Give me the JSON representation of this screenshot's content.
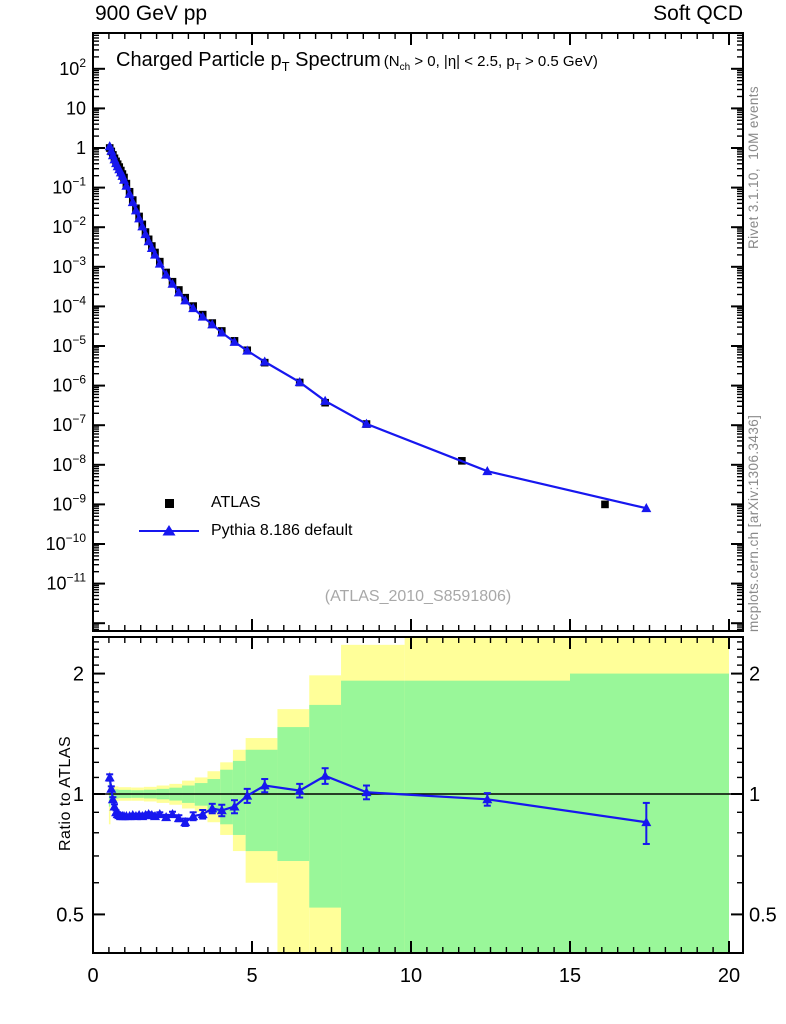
{
  "header": {
    "left": "900 GeV pp",
    "right": "Soft QCD"
  },
  "title": {
    "pre": "Charged Particle p",
    "sub": "T",
    "post": " Spectrum"
  },
  "cuts": {
    "p1": "(N",
    "s1": "ch",
    "p2": " > 0, |η| < 2.5, p",
    "s2": "T",
    "p3": " > 0.5 GeV)"
  },
  "legend": {
    "items": [
      {
        "label": "ATLAS",
        "marker": "black-square"
      },
      {
        "label": "Pythia 8.186 default",
        "marker": "blue-line-triangle"
      }
    ]
  },
  "watermark": {
    "text": "(ATLAS_2010_S8591806)"
  },
  "side_notes": {
    "top": "Rivet 3.1.10,  10M events",
    "bottom": "mcplots.cern.ch [arXiv:1306.3436]"
  },
  "colors": {
    "frame": "#000000",
    "mc_blue": "#1717ef",
    "band_outer_yellow": "#ffff99",
    "band_inner_green": "#99f799",
    "note_gray": "#8a8a8a",
    "watermark_gray": "#a8a8a8"
  },
  "chart_data": [
    {
      "type": "scatter",
      "title": "Charged Particle pT Spectrum",
      "subtitle": "(Nch > 0, |η| < 2.5, pT > 0.5 GeV)",
      "xlabel": "",
      "ylabel": "",
      "xlim": [
        0,
        20.45
      ],
      "ylim": [
        6e-13,
        800.0
      ],
      "yscale": "log",
      "grid": false,
      "xticks_major": [
        0,
        5,
        10,
        15,
        20
      ],
      "xtick_minor_step": 0.5,
      "ytick_label_exponents": [
        2,
        1,
        0,
        -1,
        -2,
        -3,
        -4,
        -5,
        -6,
        -7,
        -8,
        -9,
        -10,
        -11
      ],
      "legend_position": "left-middle",
      "watermark": "(ATLAS_2010_S8591806)",
      "series": [
        {
          "name": "ATLAS",
          "marker": "square",
          "color": "#000000",
          "line": false,
          "x": [
            0.525,
            0.575,
            0.625,
            0.675,
            0.725,
            0.775,
            0.825,
            0.875,
            0.925,
            0.975,
            1.05,
            1.15,
            1.25,
            1.35,
            1.45,
            1.55,
            1.65,
            1.75,
            1.85,
            1.95,
            2.1,
            2.3,
            2.5,
            2.7,
            2.9,
            3.15,
            3.45,
            3.75,
            4.05,
            4.45,
            4.85,
            5.4,
            6.5,
            7.3,
            8.6,
            11.6,
            16.1
          ],
          "y": [
            1.0,
            0.82,
            0.67,
            0.55,
            0.46,
            0.39,
            0.33,
            0.27,
            0.22,
            0.18,
            0.126,
            0.0785,
            0.0484,
            0.03,
            0.0187,
            0.0118,
            0.00754,
            0.00495,
            0.00335,
            0.0023,
            0.00135,
            0.00072,
            0.00042,
            0.00026,
            0.000166,
            0.000102,
            6.2e-05,
            3.8e-05,
            2.4e-05,
            1.35e-05,
            7.8e-06,
            3.8e-06,
            1.2e-06,
            3.7e-07,
            1.07e-07,
            1.26e-08,
            1e-09
          ]
        },
        {
          "name": "Pythia 8.186 default",
          "marker": "triangle-up",
          "color": "#1717ef",
          "line": true,
          "x": [
            0.525,
            0.575,
            0.625,
            0.675,
            0.725,
            0.775,
            0.825,
            0.875,
            0.925,
            0.975,
            1.05,
            1.15,
            1.25,
            1.35,
            1.45,
            1.55,
            1.65,
            1.75,
            1.85,
            1.95,
            2.1,
            2.3,
            2.5,
            2.7,
            2.9,
            3.15,
            3.45,
            3.75,
            4.05,
            4.45,
            4.85,
            5.4,
            6.5,
            7.3,
            8.6,
            12.4,
            17.4
          ],
          "y": [
            1.1,
            0.845,
            0.654,
            0.514,
            0.414,
            0.344,
            0.288,
            0.241,
            0.197,
            0.157,
            0.111,
            0.069,
            0.0428,
            0.0264,
            0.0166,
            0.0104,
            0.00667,
            0.0044,
            0.00297,
            0.00202,
            0.0012,
            0.00063,
            0.00037,
            0.000224,
            0.000141,
            9e-05,
            5.5e-05,
            3.5e-05,
            2.18e-05,
            1.26e-05,
            7.6e-06,
            4e-06,
            1.22e-06,
            4.1e-07,
            1.08e-07,
            6.9e-09,
            8e-10
          ]
        }
      ]
    },
    {
      "type": "line",
      "ylabel": "Ratio to ATLAS",
      "yscale": "log",
      "xlim": [
        0,
        20.45
      ],
      "ylim": [
        0.4,
        2.47
      ],
      "yticks_major": [
        0.5,
        1,
        2
      ],
      "ytick_labels": [
        "0.5",
        "1",
        "2"
      ],
      "yticks_minor": [
        0.6,
        0.7,
        0.8,
        0.9,
        1.1,
        1.2,
        1.3,
        1.4,
        1.5,
        1.6,
        1.7,
        1.8,
        1.9,
        2.1,
        2.2,
        2.3,
        2.4
      ],
      "xticks_major": [
        0,
        5,
        10,
        15,
        20
      ],
      "xtick_labels": [
        "0",
        "5",
        "10",
        "15",
        "20"
      ],
      "xtick_minor_step": 0.5,
      "reference_line": 1,
      "bands": {
        "outer_color": "#ffff99",
        "inner_color": "#99f799",
        "bins": [
          [
            0.5,
            0.55,
            0.84,
            1.14,
            0.93,
            1.08
          ],
          [
            0.55,
            0.6,
            0.95,
            1.06,
            0.968,
            1.035
          ],
          [
            0.6,
            0.8,
            0.958,
            1.045,
            0.974,
            1.027
          ],
          [
            0.8,
            1.2,
            0.962,
            1.04,
            0.977,
            1.024
          ],
          [
            1.2,
            1.6,
            0.962,
            1.038,
            0.978,
            1.022
          ],
          [
            1.6,
            2.0,
            0.958,
            1.042,
            0.975,
            1.025
          ],
          [
            2.0,
            2.4,
            0.95,
            1.05,
            0.97,
            1.03
          ],
          [
            2.4,
            2.8,
            0.94,
            1.06,
            0.963,
            1.037
          ],
          [
            2.8,
            3.2,
            0.92,
            1.08,
            0.95,
            1.05
          ],
          [
            3.2,
            3.6,
            0.9,
            1.1,
            0.935,
            1.065
          ],
          [
            3.6,
            4.0,
            0.85,
            1.14,
            0.9,
            1.09
          ],
          [
            4.0,
            4.4,
            0.79,
            1.2,
            0.84,
            1.15
          ],
          [
            4.4,
            4.8,
            0.72,
            1.29,
            0.79,
            1.21
          ],
          [
            4.8,
            5.8,
            0.6,
            1.38,
            0.72,
            1.29
          ],
          [
            5.8,
            6.8,
            0.4,
            1.63,
            0.68,
            1.47
          ],
          [
            6.8,
            7.8,
            0.4,
            1.98,
            0.52,
            1.67
          ],
          [
            7.8,
            9.8,
            0.4,
            2.36,
            0.4,
            1.92
          ],
          [
            9.8,
            15.0,
            0.4,
            2.5,
            0.4,
            1.92
          ],
          [
            15.0,
            20.0,
            0.4,
            2.5,
            0.4,
            2.0
          ]
        ]
      },
      "series": [
        {
          "name": "Pythia 8.186 default / ATLAS",
          "color": "#1717ef",
          "marker": "triangle-up",
          "line": true,
          "x": [
            0.525,
            0.575,
            0.625,
            0.675,
            0.725,
            0.775,
            0.825,
            0.875,
            0.925,
            0.975,
            1.05,
            1.15,
            1.25,
            1.35,
            1.45,
            1.55,
            1.65,
            1.75,
            1.85,
            1.95,
            2.1,
            2.3,
            2.5,
            2.7,
            2.9,
            3.15,
            3.45,
            3.75,
            4.05,
            4.45,
            4.85,
            5.4,
            6.5,
            7.3,
            8.6,
            12.4,
            17.4
          ],
          "y": [
            1.1,
            1.03,
            0.97,
            0.93,
            0.9,
            0.89,
            0.885,
            0.88,
            0.88,
            0.88,
            0.88,
            0.88,
            0.885,
            0.88,
            0.885,
            0.88,
            0.885,
            0.89,
            0.885,
            0.88,
            0.89,
            0.875,
            0.89,
            0.87,
            0.85,
            0.88,
            0.89,
            0.92,
            0.91,
            0.93,
            0.99,
            1.05,
            1.02,
            1.11,
            1.01,
            0.97,
            0.85
          ],
          "yerr": [
            0.02,
            0.015,
            0.012,
            0.012,
            0.01,
            0.01,
            0.01,
            0.01,
            0.01,
            0.01,
            0.008,
            0.008,
            0.008,
            0.008,
            0.008,
            0.009,
            0.009,
            0.01,
            0.01,
            0.01,
            0.01,
            0.012,
            0.013,
            0.015,
            0.018,
            0.02,
            0.022,
            0.025,
            0.03,
            0.035,
            0.04,
            0.04,
            0.04,
            0.05,
            0.04,
            0.035,
            0.1
          ]
        }
      ]
    }
  ]
}
